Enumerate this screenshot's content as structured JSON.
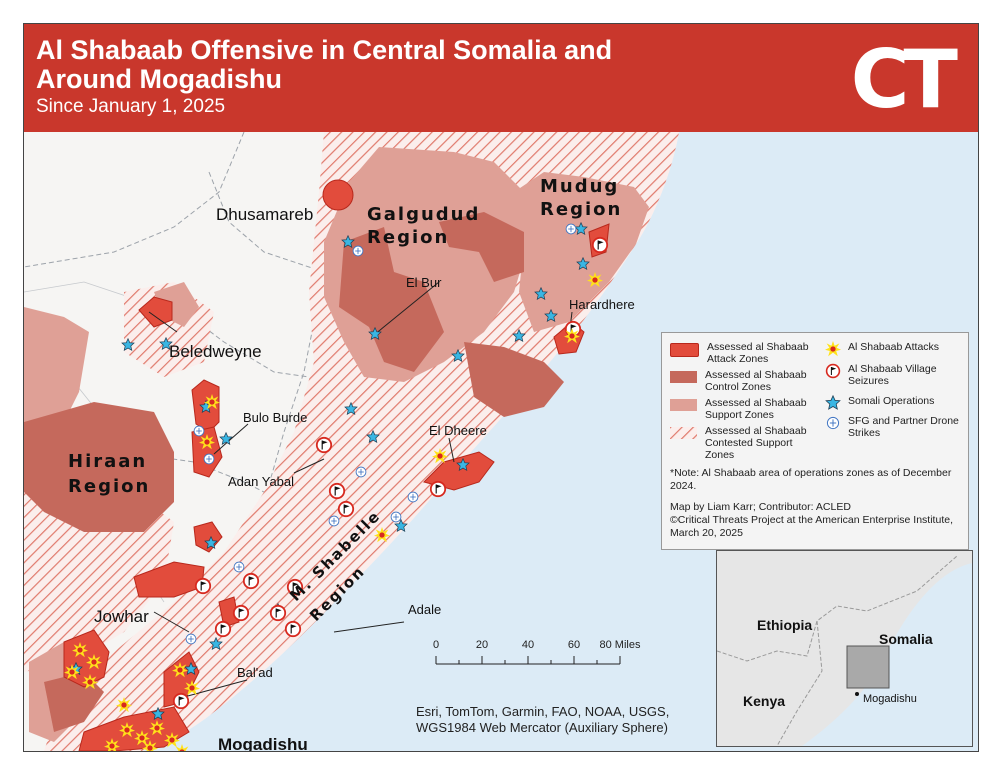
{
  "header": {
    "title": "Al Shabaab Offensive in Central Somalia and Around Mogadishu",
    "subtitle": "Since January 1, 2025",
    "logo": "CT"
  },
  "map_labels": {
    "regions": {
      "mudug": "Mudug Region",
      "galgudud": "Galgudud Region",
      "hiraan": "Hiraan Region",
      "shabelle": "M. Shabelle Region"
    },
    "towns": {
      "dhusamareb": "Dhusamareb",
      "el_bur": "El Bur",
      "harardhere": "Harardhere",
      "beledweyne": "Beledweyne",
      "bulo_burde": "Bulo Burde",
      "adan_yabal": "Adan Yabal",
      "el_dheere": "El Dheere",
      "jowhar": "Jowhar",
      "adale": "Adale",
      "balad": "Bal'ad",
      "mogadishu": "Mogadishu"
    }
  },
  "legend": {
    "attack_zones": "Assessed al Shabaab Attack Zones",
    "control_zones": "Assessed al Shabaab Control Zones",
    "support_zones": "Assessed al Shabaab Support Zones",
    "contested_zones": "Assessed al Shabaab Contested Support Zones",
    "attacks": "Al Shabaab Attacks",
    "village_seizures": "Al Shabaab Village Seizures",
    "somali_ops": "Somali Operations",
    "drone_strikes": "SFG and Partner Drone Strikes",
    "note": "*Note: Al Shabaab area of operations zones as of December 2024.",
    "credit_1": "Map by Liam Karr; Contributor: ACLED",
    "credit_2": "©Critical Threats Project at the American Enterprise Institute, March 20, 2025"
  },
  "scale": {
    "ticks": [
      "0",
      "20",
      "40",
      "60",
      "80 Miles"
    ]
  },
  "inset": {
    "ethiopia": "Ethiopia",
    "somalia": "Somalia",
    "kenya": "Kenya",
    "mogadishu": "Mogadishu"
  },
  "sources": {
    "line1": "Esri, TomTom, Garmin, FAO, NOAA, USGS,",
    "line2": "WGS1984 Web Mercator (Auxiliary Sphere)"
  },
  "colors": {
    "header": "#c9372c",
    "attack_zone": "#e24c3c",
    "control_zone": "#c5695c",
    "support_zone": "#dfa096",
    "hatch": "#e07a6c",
    "ocean": "#dcebf6",
    "somali_ops": "#39b6e3",
    "attack_star": "#ffe21a"
  }
}
